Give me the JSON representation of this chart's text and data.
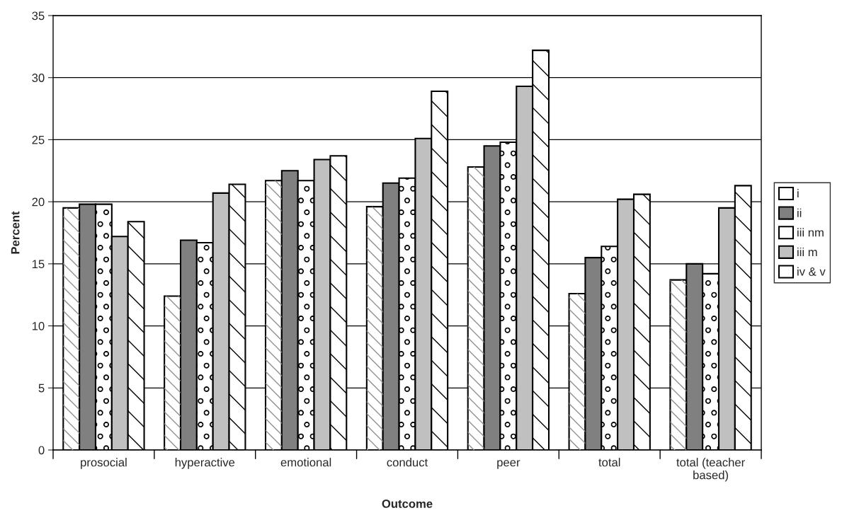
{
  "chart_data": {
    "type": "bar",
    "xlabel": "Outcome",
    "ylabel": "Percent",
    "categories": [
      "prosocial",
      "hyperactive",
      "emotional",
      "conduct",
      "peer",
      "total",
      "total (teacher\nbased)"
    ],
    "series": [
      {
        "name": "i",
        "color": "#ffffff",
        "values": [
          19.5,
          12.4,
          21.7,
          19.6,
          22.8,
          12.6,
          13.7
        ]
      },
      {
        "name": "ii",
        "color": "#808080",
        "values": [
          19.8,
          16.9,
          22.5,
          21.5,
          24.5,
          15.5,
          15.0
        ]
      },
      {
        "name": "iii nm",
        "color": "#ffffff",
        "values": [
          19.8,
          16.7,
          21.7,
          21.9,
          24.8,
          16.4,
          14.2
        ]
      },
      {
        "name": "iii m",
        "color": "#c0c0c0",
        "values": [
          17.2,
          20.7,
          23.4,
          25.1,
          29.3,
          20.2,
          19.5
        ]
      },
      {
        "name": "iv & v",
        "color": "#ffffff",
        "values": [
          18.4,
          21.4,
          23.7,
          28.9,
          32.2,
          20.6,
          21.3
        ]
      }
    ],
    "ylim": [
      0,
      35
    ],
    "yticks": [
      0,
      5,
      10,
      15,
      20,
      25,
      30,
      35
    ],
    "grid": "y",
    "legend": "right"
  }
}
